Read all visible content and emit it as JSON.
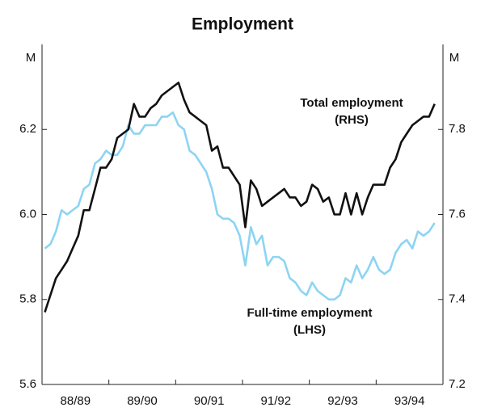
{
  "chart_data": {
    "type": "line",
    "title": "Employment",
    "y_unit": "M",
    "y2_unit": "M",
    "xlim": [
      1988.5,
      1994.5
    ],
    "xticks": [
      {
        "value": 1989,
        "label": "88/89"
      },
      {
        "value": 1990,
        "label": "89/90"
      },
      {
        "value": 1991,
        "label": "90/91"
      },
      {
        "value": 1992,
        "label": "91/92"
      },
      {
        "value": 1993,
        "label": "92/93"
      },
      {
        "value": 1994,
        "label": "93/94"
      }
    ],
    "ylim": [
      5.6,
      6.4
    ],
    "yticks": [
      5.6,
      5.8,
      {
        "value": 6.0,
        "label": "6.0"
      },
      6.2
    ],
    "y2lim": [
      7.2,
      8.0
    ],
    "y2ticks": [
      7.2,
      7.4,
      7.6,
      7.8
    ],
    "x": [
      1988.542,
      1988.625,
      1988.708,
      1988.792,
      1988.875,
      1988.958,
      1989.042,
      1989.125,
      1989.208,
      1989.292,
      1989.375,
      1989.458,
      1989.542,
      1989.625,
      1989.708,
      1989.792,
      1989.875,
      1989.958,
      1990.042,
      1990.125,
      1990.208,
      1990.292,
      1990.375,
      1990.458,
      1990.542,
      1990.625,
      1990.708,
      1990.792,
      1990.875,
      1990.958,
      1991.042,
      1991.125,
      1991.208,
      1991.292,
      1991.375,
      1991.458,
      1991.542,
      1991.625,
      1991.708,
      1991.792,
      1991.875,
      1991.958,
      1992.042,
      1992.125,
      1992.208,
      1992.292,
      1992.375,
      1992.458,
      1992.542,
      1992.625,
      1992.708,
      1992.792,
      1992.875,
      1992.958,
      1993.042,
      1993.125,
      1993.208,
      1993.292,
      1993.375,
      1993.458,
      1993.542,
      1993.625,
      1993.708,
      1993.792,
      1993.875,
      1993.958,
      1994.042,
      1994.125,
      1994.208,
      1994.292,
      1994.375
    ],
    "series": [
      {
        "name": "Total employment (RHS)",
        "color": "#111111",
        "axis": "y2",
        "values": [
          7.37,
          7.41,
          7.45,
          7.47,
          7.49,
          7.52,
          7.55,
          7.61,
          7.61,
          7.66,
          7.71,
          7.71,
          7.73,
          7.78,
          7.79,
          7.8,
          7.86,
          7.83,
          7.83,
          7.85,
          7.86,
          7.88,
          7.89,
          7.9,
          7.91,
          7.87,
          7.84,
          7.83,
          7.82,
          7.81,
          7.75,
          7.76,
          7.71,
          7.71,
          7.69,
          7.67,
          7.57,
          7.68,
          7.66,
          7.62,
          7.63,
          7.64,
          7.65,
          7.66,
          7.64,
          7.64,
          7.62,
          7.63,
          7.67,
          7.66,
          7.63,
          7.64,
          7.6,
          7.6,
          7.65,
          7.6,
          7.65,
          7.6,
          7.64,
          7.67,
          7.67,
          7.67,
          7.71,
          7.73,
          7.77,
          7.79,
          7.81,
          7.82,
          7.83,
          7.83,
          7.86
        ]
      },
      {
        "name": "Full-time employment (LHS)",
        "color": "#8dd4f3",
        "axis": "y",
        "values": [
          5.92,
          5.93,
          5.96,
          6.01,
          6.0,
          6.01,
          6.02,
          6.06,
          6.07,
          6.12,
          6.13,
          6.15,
          6.14,
          6.14,
          6.16,
          6.21,
          6.19,
          6.19,
          6.21,
          6.21,
          6.21,
          6.23,
          6.23,
          6.24,
          6.21,
          6.2,
          6.15,
          6.14,
          6.12,
          6.1,
          6.06,
          6.0,
          5.99,
          5.99,
          5.98,
          5.95,
          5.88,
          5.97,
          5.93,
          5.95,
          5.88,
          5.9,
          5.9,
          5.89,
          5.85,
          5.84,
          5.82,
          5.81,
          5.84,
          5.82,
          5.81,
          5.8,
          5.8,
          5.81,
          5.85,
          5.84,
          5.88,
          5.85,
          5.87,
          5.9,
          5.87,
          5.86,
          5.87,
          5.91,
          5.93,
          5.94,
          5.92,
          5.96,
          5.95,
          5.96,
          5.98
        ]
      }
    ],
    "annotations": [
      {
        "lines": [
          "Total employment",
          "(RHS)"
        ]
      },
      {
        "lines": [
          "Full-time employment",
          "(LHS)"
        ]
      }
    ]
  }
}
